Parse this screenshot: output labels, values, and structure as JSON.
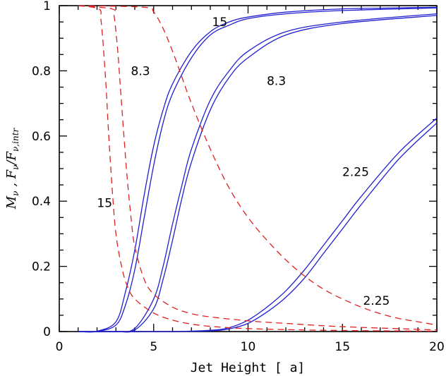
{
  "chart_data": {
    "type": "line",
    "xlabel": "Jet Height [ a]",
    "ylabel_parts": {
      "m": "M",
      "nu": "ν",
      "comma": " ,  ",
      "f": "F",
      "slash": "/",
      "fi": "F",
      "nuintr": "ν,intr"
    },
    "xlim": [
      0,
      20
    ],
    "ylim": [
      0,
      1
    ],
    "x_ticks": [
      "0",
      "5",
      "10",
      "15",
      "20"
    ],
    "y_ticks": [
      "0",
      "0.2",
      "0.4",
      "0.6",
      "0.8",
      "1"
    ],
    "grid": false,
    "colors": {
      "solid": "#1f1fd0",
      "dashed": "#e0201f"
    },
    "series": [
      {
        "style": "solid",
        "x": [
          1,
          2,
          3,
          3.5,
          4,
          4.5,
          5,
          5.5,
          6,
          7,
          8,
          9,
          10,
          12,
          15,
          20
        ],
        "y": [
          0,
          0.001,
          0.03,
          0.12,
          0.25,
          0.42,
          0.57,
          0.68,
          0.76,
          0.86,
          0.92,
          0.95,
          0.965,
          0.98,
          0.99,
          0.995
        ]
      },
      {
        "style": "solid",
        "x": [
          1,
          2,
          3,
          3.5,
          4,
          4.5,
          5,
          5.5,
          6,
          7,
          8,
          9,
          10,
          12,
          15,
          20
        ],
        "y": [
          0,
          0,
          0.02,
          0.08,
          0.19,
          0.35,
          0.51,
          0.64,
          0.73,
          0.84,
          0.91,
          0.94,
          0.96,
          0.975,
          0.985,
          0.993
        ]
      },
      {
        "style": "solid",
        "x": [
          1,
          3,
          4,
          5,
          5.5,
          6,
          6.5,
          7,
          8,
          9,
          10,
          12,
          15,
          20
        ],
        "y": [
          0,
          0,
          0.01,
          0.1,
          0.2,
          0.33,
          0.45,
          0.56,
          0.71,
          0.8,
          0.86,
          0.92,
          0.95,
          0.975
        ]
      },
      {
        "style": "solid",
        "x": [
          1,
          3,
          4,
          5,
          5.5,
          6,
          6.5,
          7,
          8,
          9,
          10,
          12,
          15,
          20
        ],
        "y": [
          0,
          0,
          0.005,
          0.07,
          0.16,
          0.28,
          0.41,
          0.52,
          0.68,
          0.78,
          0.84,
          0.91,
          0.945,
          0.97
        ]
      },
      {
        "style": "solid",
        "x": [
          1,
          6,
          8,
          9,
          10,
          11,
          12,
          13,
          14,
          15,
          16,
          18,
          20
        ],
        "y": [
          0,
          0,
          0.004,
          0.012,
          0.035,
          0.075,
          0.125,
          0.19,
          0.265,
          0.34,
          0.415,
          0.55,
          0.655
        ]
      },
      {
        "style": "solid",
        "x": [
          1,
          6,
          8,
          9,
          10,
          11,
          12,
          13,
          14,
          15,
          16,
          18,
          20
        ],
        "y": [
          0,
          0,
          0.002,
          0.008,
          0.025,
          0.06,
          0.105,
          0.165,
          0.24,
          0.315,
          0.39,
          0.53,
          0.64
        ]
      },
      {
        "style": "dashed",
        "x": [
          1,
          2.1,
          2.2,
          2.3,
          2.4,
          2.5,
          2.6,
          2.8,
          3,
          3.3,
          3.6,
          4,
          5,
          6,
          7,
          8,
          10,
          14,
          20
        ],
        "y": [
          1,
          0.99,
          0.96,
          0.9,
          0.82,
          0.73,
          0.62,
          0.44,
          0.3,
          0.2,
          0.14,
          0.1,
          0.057,
          0.035,
          0.023,
          0.016,
          0.009,
          0.004,
          0.001
        ]
      },
      {
        "style": "dashed",
        "x": [
          1,
          2.8,
          2.9,
          3,
          3.1,
          3.2,
          3.4,
          3.6,
          3.8,
          4,
          4.5,
          5,
          6,
          7,
          8,
          10,
          12,
          15,
          20
        ],
        "y": [
          1,
          0.99,
          0.97,
          0.92,
          0.86,
          0.78,
          0.62,
          0.47,
          0.35,
          0.26,
          0.16,
          0.115,
          0.075,
          0.055,
          0.045,
          0.033,
          0.025,
          0.015,
          0.005
        ]
      },
      {
        "style": "dashed",
        "x": [
          1,
          4.5,
          5,
          5.5,
          6,
          6.5,
          7,
          8,
          9,
          10,
          11,
          12,
          13,
          14,
          15,
          16,
          17,
          18,
          19,
          20
        ],
        "y": [
          1,
          0.995,
          0.98,
          0.93,
          0.86,
          0.78,
          0.7,
          0.56,
          0.44,
          0.35,
          0.28,
          0.22,
          0.17,
          0.13,
          0.1,
          0.075,
          0.055,
          0.04,
          0.03,
          0.02
        ]
      }
    ],
    "annotations": [
      {
        "text": "15",
        "x": 8.5,
        "y": 0.95
      },
      {
        "text": "8.3",
        "x": 4.3,
        "y": 0.8
      },
      {
        "text": "8.3",
        "x": 11.5,
        "y": 0.77
      },
      {
        "text": "2.25",
        "x": 15.7,
        "y": 0.49
      },
      {
        "text": "15",
        "x": 2.4,
        "y": 0.395
      },
      {
        "text": "2.25",
        "x": 16.8,
        "y": 0.095
      }
    ]
  }
}
